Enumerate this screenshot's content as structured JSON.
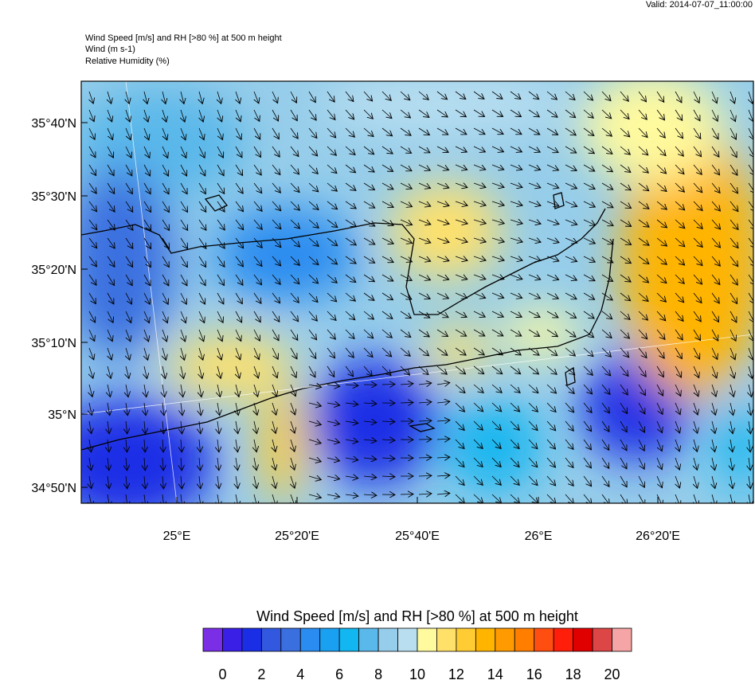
{
  "valid": "Valid: 2014-07-07_11:00:00",
  "header": {
    "lines": [
      "Wind Speed [m/s] and RH [>80 %] at 500 m height",
      "Wind   (m s-1)",
      "Relative Humidity   (%)"
    ]
  },
  "map": {
    "lat_labels": [
      "35°40'N",
      "35°30'N",
      "35°20'N",
      "35°10'N",
      "35°N",
      "34°50'N"
    ],
    "lon_labels": [
      "25°E",
      "25°20'E",
      "25°40'E",
      "26°E",
      "26°20'E"
    ]
  },
  "colorbar": {
    "title": "Wind Speed [m/s] and RH [>80 %] at 500 m height",
    "colors": [
      "#7a2ee6",
      "#3a1fe6",
      "#1a2ee6",
      "#3358e0",
      "#3a6fe0",
      "#2a8cf0",
      "#1aa0f0",
      "#12b6f0",
      "#5ab8ea",
      "#96cdea",
      "#b8def0",
      "#fffa9e",
      "#ffe16a",
      "#ffcc33",
      "#ffb400",
      "#ff9a00",
      "#ff7e00",
      "#ff4e10",
      "#ff1e0a",
      "#e10000",
      "#dc4646",
      "#f5a5a5"
    ],
    "ticks": [
      0,
      2,
      4,
      6,
      8,
      10,
      12,
      14,
      16,
      18,
      20
    ]
  }
}
